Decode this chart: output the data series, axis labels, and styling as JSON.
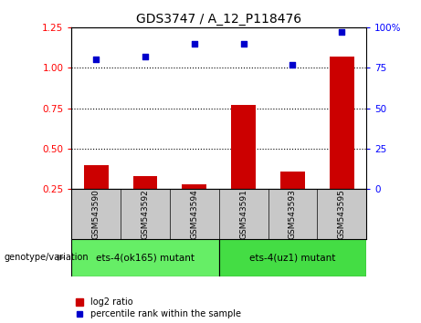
{
  "title": "GDS3747 / A_12_P118476",
  "samples": [
    "GSM543590",
    "GSM543592",
    "GSM543594",
    "GSM543591",
    "GSM543593",
    "GSM543595"
  ],
  "log2_ratio": [
    0.4,
    0.33,
    0.28,
    0.77,
    0.36,
    1.07
  ],
  "percentile_rank": [
    80,
    82,
    90,
    90,
    77,
    97
  ],
  "bar_color": "#cc0000",
  "dot_color": "#0000cc",
  "ylim_left": [
    0.25,
    1.25
  ],
  "ylim_right": [
    0,
    100
  ],
  "yticks_left": [
    0.25,
    0.5,
    0.75,
    1.0,
    1.25
  ],
  "yticks_right": [
    0,
    25,
    50,
    75,
    100
  ],
  "ytick_labels_right": [
    "0",
    "25",
    "50",
    "75",
    "100%"
  ],
  "hlines": [
    0.5,
    0.75,
    1.0
  ],
  "groups": [
    {
      "label": "ets-4(ok165) mutant",
      "indices": [
        0,
        1,
        2
      ],
      "color": "#66ee66"
    },
    {
      "label": "ets-4(uz1) mutant",
      "indices": [
        3,
        4,
        5
      ],
      "color": "#44dd44"
    }
  ],
  "group_label": "genotype/variation",
  "legend_bar_label": "log2 ratio",
  "legend_dot_label": "percentile rank within the sample",
  "background_color": "#ffffff",
  "plot_bg_color": "#ffffff",
  "label_area_color": "#c8c8c8"
}
